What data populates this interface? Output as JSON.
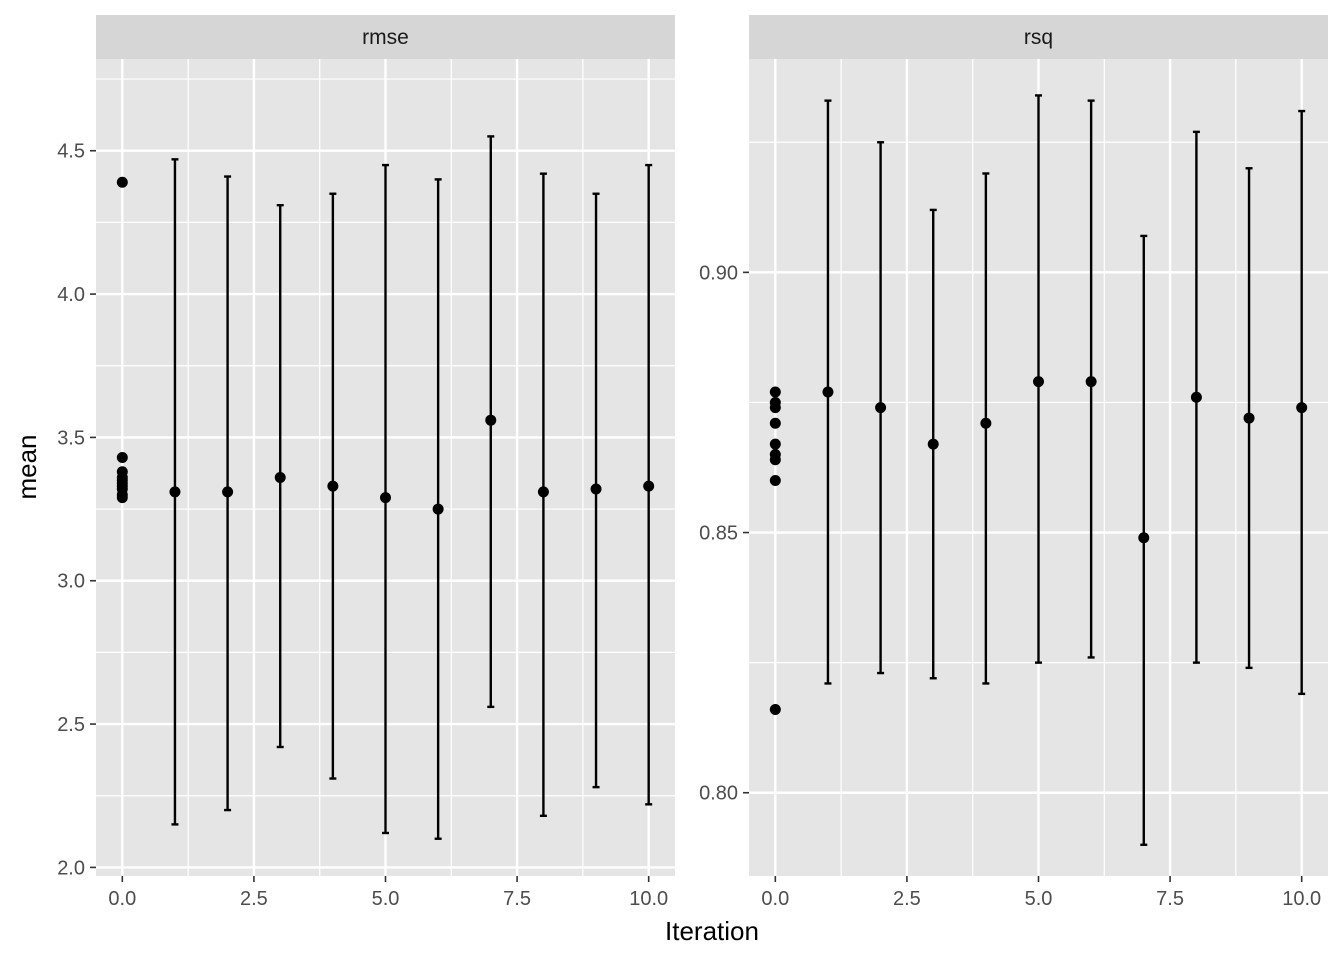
{
  "chart_data": {
    "type": "scatter",
    "xlabel": "Iteration",
    "ylabel": "mean",
    "x_ticks": [
      "0.0",
      "2.5",
      "5.0",
      "7.5",
      "10.0"
    ],
    "xlim": [
      -0.5,
      10.5
    ],
    "grid": true,
    "colors": {
      "panel_bg": "#e5e5e5",
      "grid": "#ffffff",
      "strip_bg": "#d6d6d6",
      "marks": "#000000"
    },
    "panels": [
      {
        "strip": "rmse",
        "ylim": [
          1.97,
          4.82
        ],
        "y_ticks": [
          "2.0",
          "2.5",
          "3.0",
          "3.5",
          "4.0",
          "4.5"
        ],
        "initial_points": {
          "x": [
            0,
            0,
            0,
            0,
            0,
            0,
            0,
            0,
            0,
            0
          ],
          "y": [
            4.39,
            3.43,
            3.38,
            3.36,
            3.35,
            3.34,
            3.33,
            3.32,
            3.3,
            3.29
          ]
        },
        "series": {
          "x": [
            1,
            2,
            3,
            4,
            5,
            6,
            7,
            8,
            9,
            10
          ],
          "y": [
            3.31,
            3.31,
            3.36,
            3.33,
            3.29,
            3.25,
            3.56,
            3.31,
            3.32,
            3.33
          ],
          "lower": [
            2.15,
            2.2,
            2.42,
            2.31,
            2.12,
            2.1,
            2.56,
            2.18,
            2.28,
            2.22
          ],
          "upper": [
            4.47,
            4.41,
            4.31,
            4.35,
            4.45,
            4.4,
            4.55,
            4.42,
            4.35,
            4.45
          ]
        }
      },
      {
        "strip": "rsq",
        "ylim": [
          0.784,
          0.941
        ],
        "y_ticks": [
          "0.80",
          "0.85",
          "0.90"
        ],
        "initial_points": {
          "x": [
            0,
            0,
            0,
            0,
            0,
            0,
            0,
            0,
            0
          ],
          "y": [
            0.877,
            0.875,
            0.874,
            0.871,
            0.867,
            0.865,
            0.864,
            0.86,
            0.816
          ]
        },
        "series": {
          "x": [
            1,
            2,
            3,
            4,
            5,
            6,
            7,
            8,
            9,
            10
          ],
          "y": [
            0.877,
            0.874,
            0.867,
            0.871,
            0.879,
            0.879,
            0.849,
            0.876,
            0.872,
            0.874
          ],
          "lower": [
            0.821,
            0.823,
            0.822,
            0.821,
            0.825,
            0.826,
            0.79,
            0.825,
            0.824,
            0.819
          ],
          "upper": [
            0.933,
            0.925,
            0.912,
            0.919,
            0.934,
            0.933,
            0.907,
            0.927,
            0.92,
            0.931
          ]
        }
      }
    ]
  }
}
